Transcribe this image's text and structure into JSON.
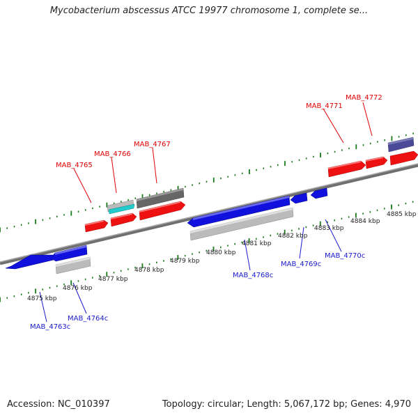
{
  "header": {
    "title": "Mycobacterium abscessus ATCC 19977 chromosome 1, complete se..."
  },
  "footer": {
    "accession": "Accession: NC_010397",
    "summary": "Topology: circular; Length: 5,067,172 bp; Genes: 4,970"
  },
  "colors": {
    "forward_gene": "#ee1111",
    "reverse_gene": "#1111dd",
    "gray_gene": "#bbbbbb",
    "dark_gene": "#666666",
    "cyan_gene": "#22cccc",
    "purple_gene": "#4a4a99",
    "ruler_tick": "#1a7a1a",
    "backbone": "#777777",
    "forward_label": "#e00000",
    "reverse_label": "#1a1acc"
  },
  "tick_labels": [
    {
      "text": "4875 kbp"
    },
    {
      "text": "4876 kbp"
    },
    {
      "text": "4877 kbp"
    },
    {
      "text": "4878 kbp"
    },
    {
      "text": "4879 kbp"
    },
    {
      "text": "4880 kbp"
    },
    {
      "text": "4881 kbp"
    },
    {
      "text": "4882 kbp"
    },
    {
      "text": "4883 kbp"
    },
    {
      "text": "4884 kbp"
    },
    {
      "text": "4885 kbp"
    }
  ],
  "forward_genes": [
    {
      "label": "MAB_4765"
    },
    {
      "label": "MAB_4766"
    },
    {
      "label": "MAB_4767"
    },
    {
      "label": "MAB_4771"
    },
    {
      "label": "MAB_4772"
    }
  ],
  "reverse_genes": [
    {
      "label": "MAB_4763c"
    },
    {
      "label": "MAB_4764c"
    },
    {
      "label": "MAB_4768c"
    },
    {
      "label": "MAB_4769c"
    },
    {
      "label": "MAB_4770c"
    }
  ]
}
